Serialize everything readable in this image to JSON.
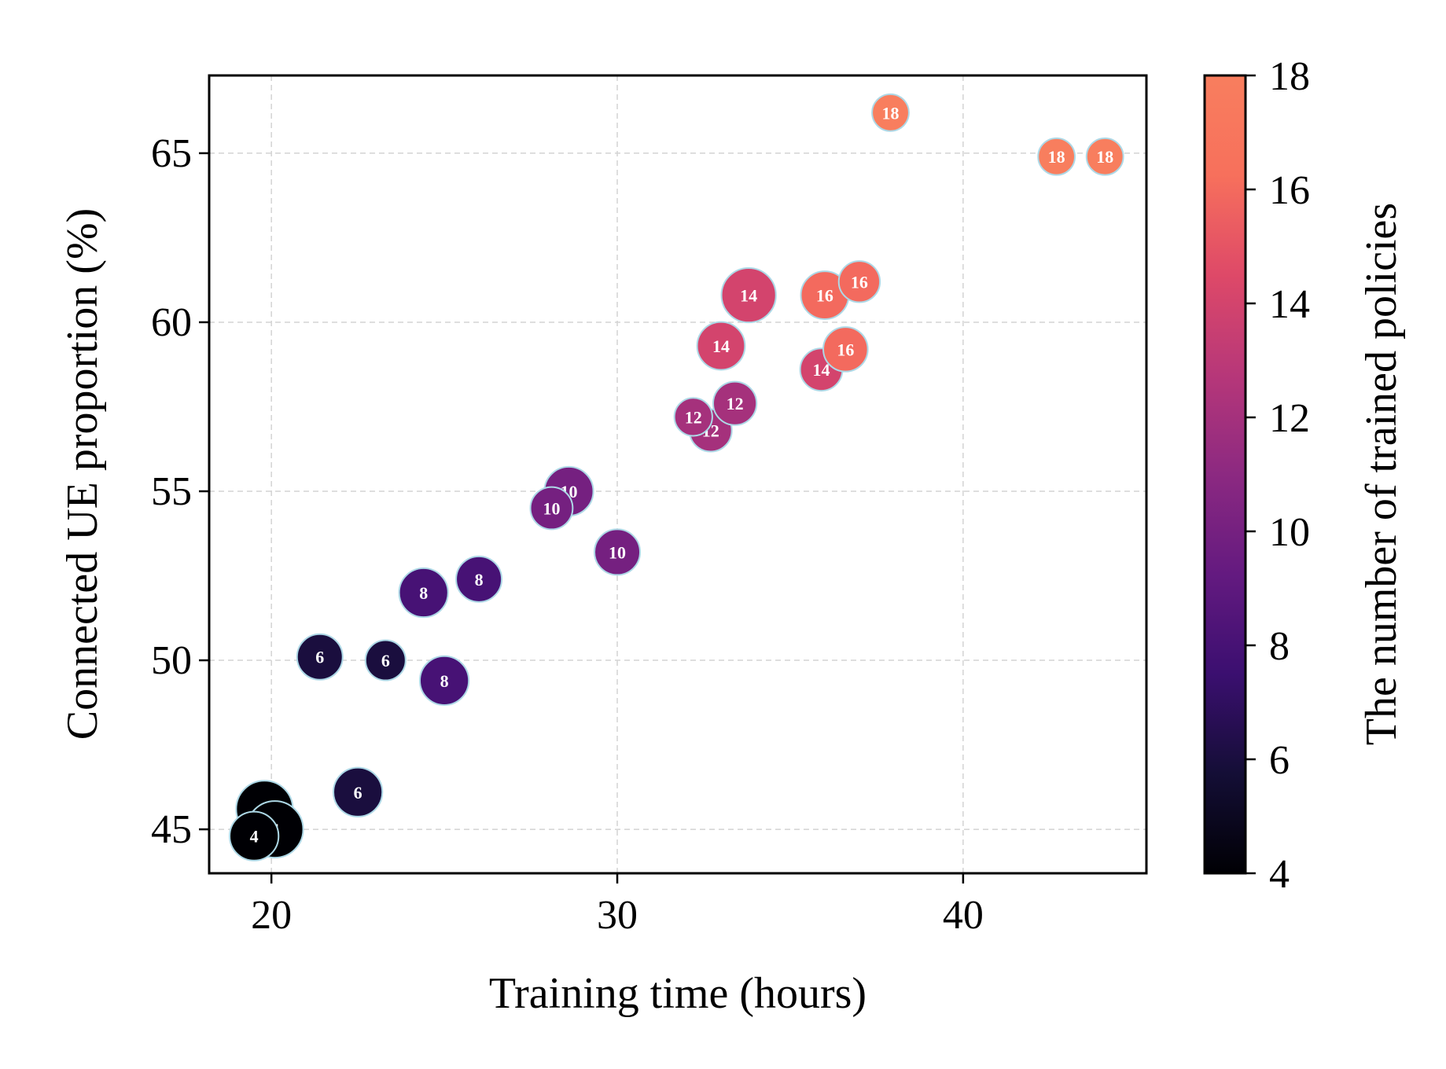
{
  "chart_data": {
    "type": "scatter",
    "title": "",
    "xlabel": "Training time (hours)",
    "ylabel": "Connected UE proportion (%)",
    "xlim": [
      18.2,
      45.3
    ],
    "ylim": [
      43.7,
      67.3
    ],
    "xticks": [
      20,
      30,
      40
    ],
    "yticks": [
      45,
      50,
      55,
      60,
      65
    ],
    "grid": true,
    "colorbar": {
      "label": "The number of trained policies",
      "min": 4,
      "max": 18,
      "ticks": [
        4,
        6,
        8,
        10,
        12,
        14,
        16,
        18
      ],
      "colormap": "magma"
    },
    "marker_edge_color": "#add8e6",
    "points": [
      {
        "x": 19.8,
        "y": 45.6,
        "n": 4,
        "size": 4.0
      },
      {
        "x": 20.1,
        "y": 45.0,
        "n": 4,
        "size": 4.0
      },
      {
        "x": 19.5,
        "y": 44.8,
        "n": 4,
        "size": 3.3
      },
      {
        "x": 21.4,
        "y": 50.1,
        "n": 6,
        "size": 3.0
      },
      {
        "x": 23.3,
        "y": 50.0,
        "n": 6,
        "size": 2.5
      },
      {
        "x": 22.5,
        "y": 46.1,
        "n": 6,
        "size": 3.3
      },
      {
        "x": 24.4,
        "y": 52.0,
        "n": 8,
        "size": 3.3
      },
      {
        "x": 26.0,
        "y": 52.4,
        "n": 8,
        "size": 3.0
      },
      {
        "x": 25.0,
        "y": 49.4,
        "n": 8,
        "size": 3.3
      },
      {
        "x": 28.6,
        "y": 55.0,
        "n": 10,
        "size": 3.3
      },
      {
        "x": 28.1,
        "y": 54.5,
        "n": 10,
        "size": 2.7
      },
      {
        "x": 30.0,
        "y": 53.2,
        "n": 10,
        "size": 3.0
      },
      {
        "x": 32.7,
        "y": 56.8,
        "n": 12,
        "size": 2.7
      },
      {
        "x": 32.2,
        "y": 57.2,
        "n": 12,
        "size": 2.3
      },
      {
        "x": 33.4,
        "y": 57.6,
        "n": 12,
        "size": 2.8
      },
      {
        "x": 33.8,
        "y": 60.8,
        "n": 14,
        "size": 3.8
      },
      {
        "x": 33.0,
        "y": 59.3,
        "n": 14,
        "size": 3.2
      },
      {
        "x": 35.9,
        "y": 58.6,
        "n": 14,
        "size": 2.7
      },
      {
        "x": 36.0,
        "y": 60.8,
        "n": 16,
        "size": 3.2
      },
      {
        "x": 37.0,
        "y": 61.2,
        "n": 16,
        "size": 2.6
      },
      {
        "x": 36.6,
        "y": 59.2,
        "n": 16,
        "size": 2.9
      },
      {
        "x": 37.9,
        "y": 66.2,
        "n": 18,
        "size": 2.2
      },
      {
        "x": 42.7,
        "y": 64.9,
        "n": 18,
        "size": 2.2
      },
      {
        "x": 44.1,
        "y": 64.9,
        "n": 18,
        "size": 2.2
      }
    ]
  }
}
